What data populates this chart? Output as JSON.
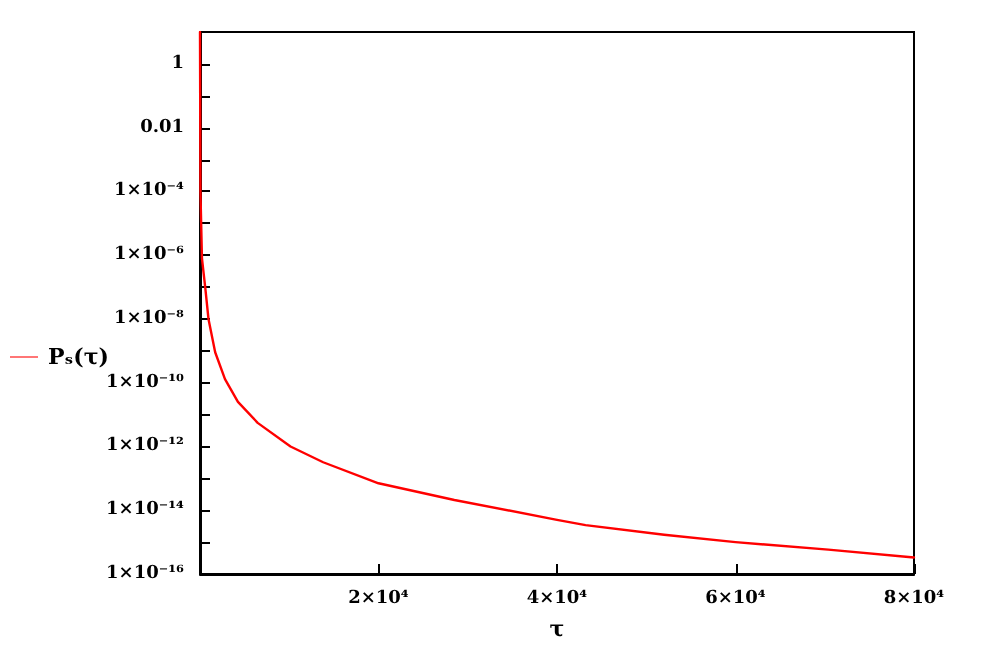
{
  "chart_data": {
    "type": "line",
    "xlabel": "τ",
    "log": "y",
    "grid": false,
    "legend": "left",
    "marker": "none",
    "line_style": "solid",
    "x": [
      0,
      50,
      220,
      600,
      950,
      1700,
      2800,
      4250,
      6460,
      10140,
      13800,
      20000,
      28500,
      40000,
      43200,
      52000,
      60000,
      70400,
      80000
    ],
    "series": [
      {
        "name": "Pₛ(τ)",
        "color": "#ff0000",
        "values": [
          10,
          0.0001,
          8e-07,
          9e-08,
          1e-08,
          9e-10,
          1.3e-10,
          2.5e-11,
          5.5e-12,
          1e-12,
          3.2e-13,
          7e-14,
          2.1e-14,
          5e-15,
          3.4e-15,
          1.7e-15,
          1e-15,
          5.8e-16,
          3.3e-16
        ]
      }
    ],
    "xlim": [
      0,
      80000
    ],
    "xticks": [
      {
        "value": 20000,
        "label": "2×10⁴"
      },
      {
        "value": 40000,
        "label": "4×10⁴"
      },
      {
        "value": 60000,
        "label": "6×10⁴"
      },
      {
        "value": 80000,
        "label": "8×10⁴"
      }
    ],
    "ylim": [
      1e-16,
      10
    ],
    "yticks": [
      {
        "value": 1e-16,
        "label": "1×10⁻¹⁶"
      },
      {
        "value": 1e-15,
        "label": null
      },
      {
        "value": 1e-14,
        "label": "1×10⁻¹⁴"
      },
      {
        "value": 1e-13,
        "label": null
      },
      {
        "value": 1e-12,
        "label": "1×10⁻¹²"
      },
      {
        "value": 1e-11,
        "label": null
      },
      {
        "value": 1e-10,
        "label": "1×10⁻¹⁰"
      },
      {
        "value": 1e-09,
        "label": null
      },
      {
        "value": 1e-08,
        "label": "1×10⁻⁸"
      },
      {
        "value": 1e-07,
        "label": null
      },
      {
        "value": 1e-06,
        "label": "1×10⁻⁶"
      },
      {
        "value": 1e-05,
        "label": null
      },
      {
        "value": 0.0001,
        "label": "1×10⁻⁴"
      },
      {
        "value": 0.001,
        "label": null
      },
      {
        "value": 0.01,
        "label": "0.01"
      },
      {
        "value": 0.1,
        "label": null
      },
      {
        "value": 1,
        "label": "1"
      }
    ]
  }
}
